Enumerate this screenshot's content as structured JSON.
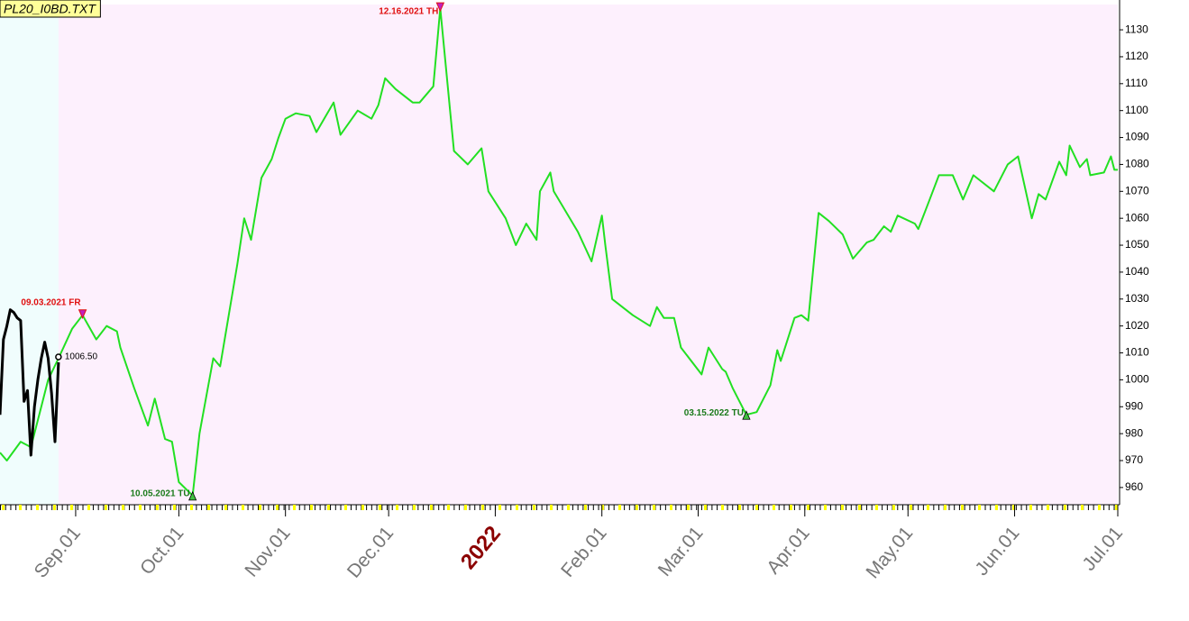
{
  "chart_data": {
    "type": "line",
    "title": "PL20_I0BD.TXT",
    "xlim": [
      "2021-08-10",
      "2022-07-01"
    ],
    "ylim": [
      953.6,
      1139.4
    ],
    "yticks": [
      960,
      970,
      980,
      990,
      1000,
      1010,
      1020,
      1030,
      1040,
      1050,
      1060,
      1070,
      1080,
      1090,
      1100,
      1110,
      1120,
      1130
    ],
    "xticks": [
      {
        "value": "2021-09-01",
        "label": "Sep.01"
      },
      {
        "value": "2021-10-01",
        "label": "Oct.01"
      },
      {
        "value": "2021-11-01",
        "label": "Nov.01"
      },
      {
        "value": "2021-12-01",
        "label": "Dec.01"
      },
      {
        "value": "2022-01-01",
        "label": "2022"
      },
      {
        "value": "2022-02-01",
        "label": "Feb.01"
      },
      {
        "value": "2022-03-01",
        "label": "Mar.01"
      },
      {
        "value": "2022-04-01",
        "label": "Apr.01"
      },
      {
        "value": "2022-05-01",
        "label": "May.01"
      },
      {
        "value": "2022-06-01",
        "label": "Jun.01"
      },
      {
        "value": "2022-07-01",
        "label": "Jul.01"
      }
    ],
    "series": [
      {
        "color": "#22e022",
        "x": [
          "2021-08-10",
          "2021-08-12",
          "2021-08-16",
          "2021-08-19",
          "2021-08-22",
          "2021-08-24",
          "2021-08-27",
          "2021-08-31",
          "2021-09-03",
          "2021-09-07",
          "2021-09-10",
          "2021-09-13",
          "2021-09-14",
          "2021-09-18",
          "2021-09-22",
          "2021-09-24",
          "2021-09-27",
          "2021-09-29",
          "2021-10-01",
          "2021-10-05",
          "2021-10-07",
          "2021-10-11",
          "2021-10-13",
          "2021-10-18",
          "2021-10-20",
          "2021-10-22",
          "2021-10-25",
          "2021-10-28",
          "2021-10-30",
          "2021-11-01",
          "2021-11-04",
          "2021-11-08",
          "2021-11-10",
          "2021-11-15",
          "2021-11-17",
          "2021-11-22",
          "2021-11-26",
          "2021-11-28",
          "2021-11-30",
          "2021-12-03",
          "2021-12-08",
          "2021-12-10",
          "2021-12-14",
          "2021-12-16",
          "2021-12-20",
          "2021-12-24",
          "2021-12-28",
          "2021-12-30",
          "2022-01-04",
          "2022-01-07",
          "2022-01-10",
          "2022-01-13",
          "2022-01-14",
          "2022-01-17",
          "2022-01-18",
          "2022-01-25",
          "2022-01-29",
          "2022-02-01",
          "2022-02-02",
          "2022-02-04",
          "2022-02-10",
          "2022-02-15",
          "2022-02-17",
          "2022-02-19",
          "2022-02-22",
          "2022-02-24",
          "2022-03-02",
          "2022-03-04",
          "2022-03-08",
          "2022-03-09",
          "2022-03-11",
          "2022-03-15",
          "2022-03-18",
          "2022-03-22",
          "2022-03-24",
          "2022-03-25",
          "2022-03-29",
          "2022-03-31",
          "2022-04-02",
          "2022-04-05",
          "2022-04-08",
          "2022-04-12",
          "2022-04-15",
          "2022-04-19",
          "2022-04-21",
          "2022-04-24",
          "2022-04-26",
          "2022-04-28",
          "2022-05-03",
          "2022-05-04",
          "2022-05-07",
          "2022-05-10",
          "2022-05-14",
          "2022-05-17",
          "2022-05-20",
          "2022-05-26",
          "2022-05-30",
          "2022-06-02",
          "2022-06-06",
          "2022-06-08",
          "2022-06-10",
          "2022-06-14",
          "2022-06-16",
          "2022-06-17",
          "2022-06-20",
          "2022-06-22",
          "2022-06-23",
          "2022-06-27",
          "2022-06-29",
          "2022-06-30",
          "2022-07-01"
        ],
        "values": [
          973,
          970,
          977,
          975,
          990,
          1000,
          1008,
          1019,
          1024,
          1015,
          1020,
          1018,
          1012,
          997,
          983,
          993,
          978,
          977,
          962,
          957,
          980,
          1008,
          1005,
          1043,
          1060,
          1052,
          1075,
          1082,
          1090,
          1097,
          1099,
          1098,
          1092,
          1103,
          1091,
          1100,
          1097,
          1102,
          1112,
          1108,
          1103,
          1103,
          1109,
          1138,
          1085,
          1080,
          1086,
          1070,
          1060,
          1050,
          1058,
          1052,
          1070,
          1077,
          1070,
          1055,
          1044,
          1061,
          1050,
          1030,
          1024,
          1020,
          1027,
          1023,
          1023,
          1012,
          1002,
          1012,
          1004,
          1003,
          997,
          987,
          988,
          998,
          1011,
          1007,
          1023,
          1024,
          1022,
          1062,
          1059,
          1054,
          1045,
          1051,
          1052,
          1057,
          1055,
          1061,
          1058,
          1056,
          1066,
          1076,
          1076,
          1067,
          1076,
          1070,
          1080,
          1083,
          1060,
          1069,
          1067,
          1081,
          1076,
          1087,
          1079,
          1082,
          1076,
          1077,
          1083,
          1078,
          1078
        ]
      },
      {
        "color": "#000000",
        "x": [
          "2021-08-10",
          "2021-08-11",
          "2021-08-12",
          "2021-08-13",
          "2021-08-14",
          "2021-08-15",
          "2021-08-16",
          "2021-08-17",
          "2021-08-18",
          "2021-08-19",
          "2021-08-20",
          "2021-08-21",
          "2021-08-22",
          "2021-08-23",
          "2021-08-24",
          "2021-08-25",
          "2021-08-26",
          "2021-08-27"
        ],
        "values": [
          987,
          1015,
          1020,
          1026,
          1025,
          1023,
          1022,
          992,
          996,
          972,
          990,
          1000,
          1008,
          1014,
          1008,
          995,
          977,
          1006.5
        ]
      }
    ],
    "annotations": [
      {
        "label": "09.03.2021 FR",
        "x": "2021-09-03",
        "y": 1024,
        "color": "#e01010",
        "marker": "down"
      },
      {
        "label": "12.16.2021 TH",
        "x": "2021-12-16",
        "y": 1138,
        "color": "#e01010",
        "marker": "down"
      },
      {
        "label": "10.05.2021 TU",
        "x": "2021-10-05",
        "y": 957,
        "color": "#1a7a1a",
        "marker": "up"
      },
      {
        "label": "03.15.2022 TU",
        "x": "2022-03-15",
        "y": 987,
        "color": "#1a7a1a",
        "marker": "up"
      },
      {
        "label": "1006.50",
        "x": "2021-08-27",
        "y": 1006.5,
        "color": "#000000",
        "marker": "circle"
      }
    ]
  }
}
